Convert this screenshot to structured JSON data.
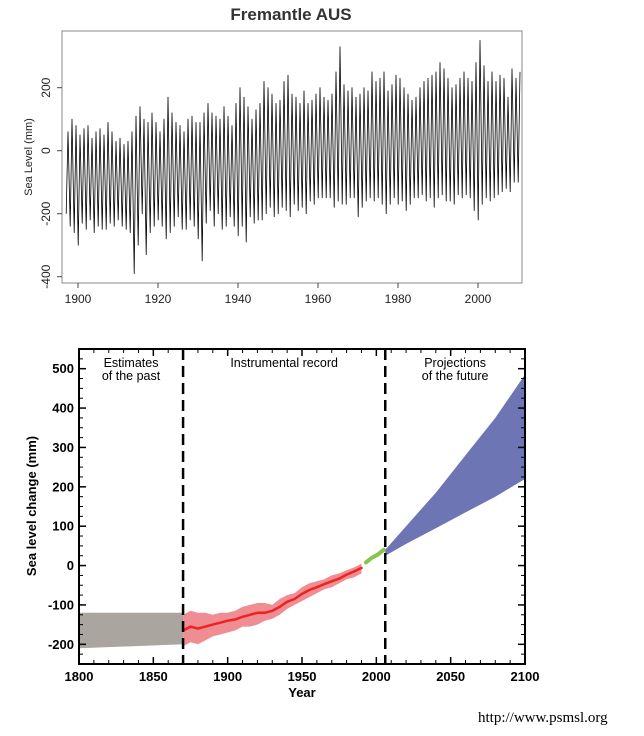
{
  "chart_data": [
    {
      "type": "line",
      "title": "Fremantle AUS",
      "xlabel": "",
      "ylabel": "Sea Level (mm)",
      "xlim": [
        1896,
        2011
      ],
      "ylim": [
        -420,
        380
      ],
      "x_ticks": [
        1900,
        1920,
        1940,
        1960,
        1980,
        2000
      ],
      "y_ticks": [
        -400,
        -200,
        0,
        200
      ],
      "x_tick_labels": [
        "1900",
        "1920",
        "1940",
        "1960",
        "1980",
        "2000"
      ],
      "y_tick_labels": [
        "-400",
        "-200",
        "0",
        "200"
      ],
      "grid": false,
      "legend": "none",
      "line_color": "#000000",
      "series": [
        {
          "x": [
            1897,
            1898,
            1899,
            1900,
            1901,
            1902,
            1903,
            1904,
            1905,
            1906,
            1907,
            1908,
            1909,
            1910,
            1911,
            1912,
            1913,
            1914,
            1915,
            1916,
            1917,
            1918,
            1919,
            1920,
            1921,
            1922,
            1923,
            1924,
            1925,
            1926,
            1927,
            1928,
            1929,
            1930,
            1931,
            1932,
            1933,
            1934,
            1935,
            1936,
            1937,
            1938,
            1939,
            1940,
            1941,
            1942,
            1943,
            1944,
            1945,
            1946,
            1947,
            1948,
            1949,
            1950,
            1951,
            1952,
            1953,
            1954,
            1955,
            1956,
            1957,
            1958,
            1959,
            1960,
            1961,
            1962,
            1963,
            1964,
            1965,
            1966,
            1967,
            1968,
            1969,
            1970,
            1971,
            1972,
            1973,
            1974,
            1975,
            1976,
            1977,
            1978,
            1979,
            1980,
            1981,
            1982,
            1983,
            1984,
            1985,
            1986,
            1987,
            1988,
            1989,
            1990,
            1991,
            1992,
            1993,
            1994,
            1995,
            1996,
            1997,
            1998,
            1999,
            2000,
            2001,
            2002,
            2003,
            2004,
            2005,
            2006,
            2007,
            2008,
            2009,
            2010
          ],
          "high": [
            60,
            100,
            80,
            50,
            70,
            80,
            40,
            60,
            70,
            50,
            90,
            60,
            30,
            40,
            20,
            30,
            60,
            110,
            140,
            100,
            90,
            120,
            90,
            60,
            100,
            170,
            120,
            90,
            80,
            60,
            100,
            110,
            90,
            90,
            120,
            150,
            120,
            110,
            100,
            140,
            110,
            80,
            150,
            200,
            170,
            140,
            100,
            130,
            150,
            220,
            200,
            180,
            150,
            160,
            220,
            240,
            180,
            170,
            150,
            190,
            150,
            160,
            180,
            200,
            170,
            160,
            180,
            250,
            330,
            210,
            190,
            200,
            170,
            180,
            200,
            190,
            250,
            220,
            230,
            250,
            190,
            210,
            240,
            230,
            200,
            180,
            160,
            170,
            200,
            220,
            230,
            240,
            250,
            280,
            260,
            230,
            200,
            210,
            230,
            250,
            230,
            220,
            280,
            350,
            270,
            220,
            250,
            220,
            240,
            230,
            170,
            260,
            230,
            250
          ],
          "low": [
            -200,
            -240,
            -260,
            -300,
            -230,
            -250,
            -220,
            -260,
            -240,
            -250,
            -250,
            -230,
            -240,
            -220,
            -240,
            -250,
            -260,
            -390,
            -300,
            -200,
            -330,
            -260,
            -240,
            -220,
            -240,
            -280,
            -260,
            -240,
            -210,
            -250,
            -250,
            -220,
            -240,
            -280,
            -350,
            -230,
            -190,
            -240,
            -200,
            -250,
            -240,
            -210,
            -240,
            -270,
            -240,
            -290,
            -210,
            -230,
            -220,
            -220,
            -200,
            -180,
            -210,
            -200,
            -180,
            -190,
            -210,
            -170,
            -190,
            -180,
            -200,
            -160,
            -170,
            -150,
            -150,
            -150,
            -150,
            -180,
            -160,
            -170,
            -170,
            -150,
            -150,
            -210,
            -180,
            -160,
            -150,
            -160,
            -150,
            -170,
            -200,
            -170,
            -150,
            -170,
            -160,
            -190,
            -170,
            -150,
            -150,
            -140,
            -160,
            -150,
            -180,
            -150,
            -140,
            -160,
            -160,
            -170,
            -140,
            -150,
            -140,
            -150,
            -190,
            -220,
            -170,
            -150,
            -160,
            -150,
            -140,
            -130,
            -120,
            -130,
            -100,
            -100
          ]
        }
      ]
    },
    {
      "type": "area",
      "title": "",
      "xlabel": "Year",
      "ylabel": "Sea level change (mm)",
      "xlim": [
        1800,
        2100
      ],
      "ylim": [
        -250,
        550
      ],
      "x_ticks": [
        1800,
        1850,
        1900,
        1950,
        2000,
        2050,
        2100
      ],
      "y_ticks": [
        -200,
        -100,
        0,
        100,
        200,
        300,
        400,
        500
      ],
      "x_tick_labels": [
        "1800",
        "1850",
        "1900",
        "1950",
        "2000",
        "2050",
        "2100"
      ],
      "y_tick_labels": [
        "-200",
        "-100",
        "0",
        "100",
        "200",
        "300",
        "400",
        "500"
      ],
      "grid": false,
      "legend": "none",
      "dividers": [
        1870,
        2006
      ],
      "annotations": [
        {
          "lines": [
            "Estimates",
            "of the past"
          ],
          "x": 1835
        },
        {
          "lines": [
            "Instrumental record"
          ],
          "x": 1938
        },
        {
          "lines": [
            "Projections",
            "of the future"
          ],
          "x": 2053
        }
      ],
      "series": [
        {
          "color": "#aba59f",
          "x": [
            1800,
            1870
          ],
          "upper": [
            -120,
            -120
          ],
          "lower": [
            -210,
            -200
          ]
        },
        {
          "color": "#f08d93",
          "x": [
            1870,
            1875,
            1880,
            1885,
            1890,
            1895,
            1900,
            1905,
            1910,
            1915,
            1920,
            1925,
            1930,
            1935,
            1940,
            1945,
            1950,
            1955,
            1960,
            1965,
            1970,
            1975,
            1980,
            1985,
            1990
          ],
          "upper": [
            -125,
            -115,
            -120,
            -120,
            -125,
            -120,
            -120,
            -115,
            -105,
            -100,
            -95,
            -95,
            -100,
            -85,
            -75,
            -70,
            -55,
            -45,
            -40,
            -35,
            -25,
            -20,
            -12,
            -5,
            5
          ],
          "lower": [
            -205,
            -195,
            -200,
            -190,
            -180,
            -175,
            -170,
            -165,
            -155,
            -155,
            -150,
            -140,
            -135,
            -125,
            -110,
            -100,
            -90,
            -80,
            -70,
            -60,
            -55,
            -45,
            -35,
            -30,
            -20
          ]
        },
        {
          "color": "#ee2222",
          "x": [
            1870,
            1875,
            1880,
            1885,
            1890,
            1895,
            1900,
            1905,
            1910,
            1915,
            1920,
            1925,
            1930,
            1935,
            1940,
            1945,
            1950,
            1955,
            1960,
            1965,
            1970,
            1975,
            1980,
            1985,
            1990
          ],
          "values": [
            -165,
            -155,
            -160,
            -155,
            -150,
            -145,
            -140,
            -137,
            -130,
            -125,
            -120,
            -120,
            -115,
            -105,
            -92,
            -85,
            -72,
            -62,
            -55,
            -47,
            -40,
            -33,
            -23,
            -15,
            -6
          ]
        },
        {
          "color": "#88c34e",
          "x": [
            1993,
            1997,
            2001,
            2005
          ],
          "values": [
            8,
            20,
            28,
            40
          ]
        },
        {
          "color": "#6d75b5",
          "x": [
            2006,
            2020,
            2040,
            2060,
            2080,
            2100
          ],
          "upper": [
            40,
            100,
            185,
            280,
            375,
            485
          ],
          "lower": [
            25,
            55,
            95,
            135,
            175,
            220
          ]
        }
      ]
    }
  ],
  "footer": {
    "url": "http://www.psmsl.org"
  }
}
